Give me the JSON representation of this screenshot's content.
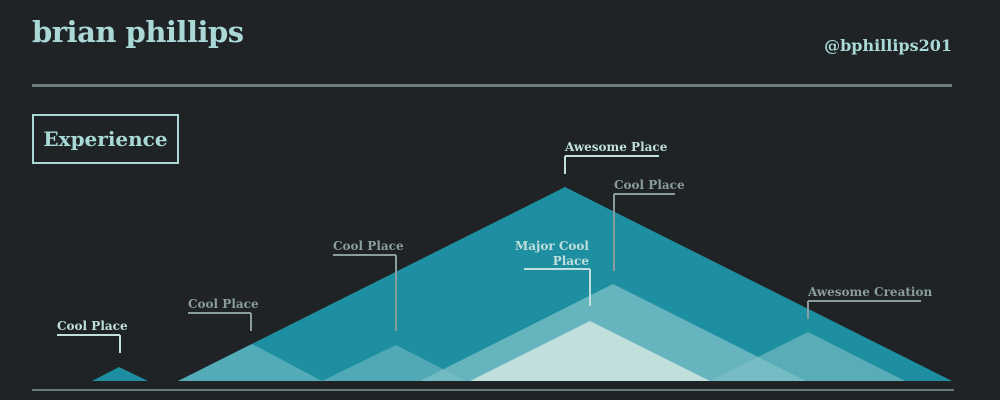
{
  "header": {
    "name": "brian phillips",
    "handle": "@bphillips201"
  },
  "section": {
    "title": "Experience"
  },
  "colors": {
    "background": "#1f2326",
    "accent_light": "#a9d8d6",
    "rule": "#6b7b7d",
    "label_gray": "#8a9c9d",
    "tri_dark": "#1e8fa1",
    "tri_mid": "#7fc1c8",
    "tri_light": "#c0dfdd"
  },
  "experience": [
    {
      "label": "Cool Place",
      "style": "light"
    },
    {
      "label": "Cool Place",
      "style": "gray"
    },
    {
      "label": "Cool Place",
      "style": "gray"
    },
    {
      "label": "Awesome Place",
      "style": "light"
    },
    {
      "label": "Cool Place",
      "style": "gray"
    },
    {
      "label": "Major Cool Place",
      "style": "light"
    },
    {
      "label": "Awesome Creation",
      "style": "gray"
    }
  ]
}
